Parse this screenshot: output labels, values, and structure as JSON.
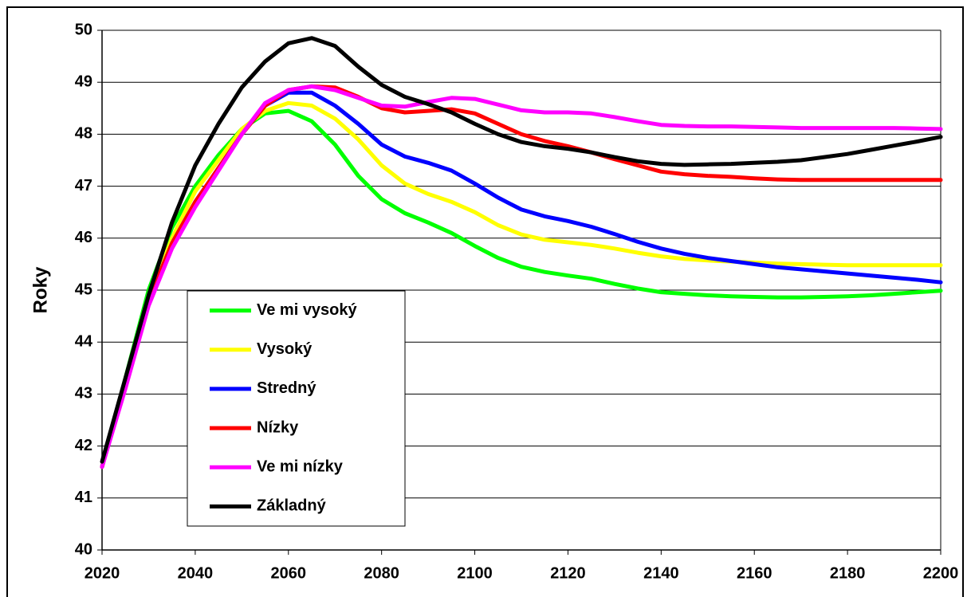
{
  "chart_data": {
    "type": "line",
    "y_label": "Roky",
    "x": [
      2020,
      2025,
      2030,
      2035,
      2040,
      2045,
      2050,
      2055,
      2060,
      2065,
      2070,
      2075,
      2080,
      2085,
      2090,
      2095,
      2100,
      2105,
      2110,
      2115,
      2120,
      2125,
      2130,
      2135,
      2140,
      2145,
      2150,
      2155,
      2160,
      2165,
      2170,
      2175,
      2180,
      2185,
      2190,
      2195,
      2200
    ],
    "xlim": [
      2020,
      2200
    ],
    "xticks": [
      2020,
      2040,
      2060,
      2080,
      2100,
      2120,
      2140,
      2160,
      2180,
      2200
    ],
    "ylim": [
      40,
      50
    ],
    "yticks": [
      40,
      41,
      42,
      43,
      44,
      45,
      46,
      47,
      48,
      49,
      50
    ],
    "grid": true,
    "legend": "lower left",
    "series": [
      {
        "name": "Ve mi vysoký",
        "color": "#00ff00",
        "values": [
          41.6,
          43.3,
          45.0,
          46.2,
          47.0,
          47.6,
          48.1,
          48.4,
          48.45,
          48.25,
          47.8,
          47.2,
          46.75,
          46.48,
          46.3,
          46.1,
          45.85,
          45.62,
          45.45,
          45.35,
          45.28,
          45.22,
          45.12,
          45.03,
          44.96,
          44.93,
          44.9,
          44.88,
          44.87,
          44.86,
          44.86,
          44.87,
          44.88,
          44.9,
          44.93,
          44.96,
          44.99
        ]
      },
      {
        "name": "Vysoký",
        "color": "#ffff00",
        "values": [
          41.6,
          43.2,
          44.8,
          46.0,
          46.9,
          47.5,
          48.1,
          48.45,
          48.6,
          48.55,
          48.3,
          47.9,
          47.4,
          47.05,
          46.85,
          46.7,
          46.5,
          46.25,
          46.07,
          45.97,
          45.92,
          45.87,
          45.8,
          45.72,
          45.65,
          45.6,
          45.57,
          45.55,
          45.53,
          45.51,
          45.5,
          45.49,
          45.48,
          45.48,
          45.48,
          45.48,
          45.48
        ]
      },
      {
        "name": "Stredný",
        "color": "#0000ff",
        "values": [
          41.6,
          43.2,
          44.8,
          45.9,
          46.7,
          47.35,
          48.0,
          48.55,
          48.8,
          48.8,
          48.55,
          48.2,
          47.8,
          47.57,
          47.45,
          47.3,
          47.05,
          46.78,
          46.55,
          46.42,
          46.33,
          46.22,
          46.08,
          45.93,
          45.8,
          45.7,
          45.62,
          45.56,
          45.5,
          45.44,
          45.4,
          45.36,
          45.32,
          45.28,
          45.24,
          45.2,
          45.15
        ]
      },
      {
        "name": "Nízky",
        "color": "#ff0000",
        "values": [
          41.6,
          43.2,
          44.8,
          45.9,
          46.7,
          47.35,
          48.0,
          48.55,
          48.85,
          48.92,
          48.9,
          48.72,
          48.5,
          48.42,
          48.45,
          48.48,
          48.4,
          48.2,
          48.0,
          47.87,
          47.77,
          47.65,
          47.52,
          47.4,
          47.28,
          47.23,
          47.2,
          47.18,
          47.15,
          47.13,
          47.12,
          47.12,
          47.12,
          47.12,
          47.12,
          47.12,
          47.12
        ]
      },
      {
        "name": "Ve mi nízky",
        "color": "#ff00ff",
        "values": [
          41.6,
          43.1,
          44.7,
          45.8,
          46.6,
          47.3,
          48.0,
          48.6,
          48.85,
          48.92,
          48.85,
          48.7,
          48.55,
          48.53,
          48.62,
          48.7,
          48.68,
          48.57,
          48.46,
          48.42,
          48.42,
          48.4,
          48.33,
          48.25,
          48.18,
          48.16,
          48.15,
          48.15,
          48.14,
          48.13,
          48.12,
          48.12,
          48.12,
          48.12,
          48.12,
          48.11,
          48.1
        ]
      },
      {
        "name": "Základný",
        "color": "#000000",
        "values": [
          41.7,
          43.3,
          44.9,
          46.3,
          47.4,
          48.2,
          48.9,
          49.4,
          49.75,
          49.85,
          49.7,
          49.3,
          48.95,
          48.72,
          48.58,
          48.42,
          48.2,
          48.0,
          47.85,
          47.77,
          47.72,
          47.65,
          47.56,
          47.48,
          47.43,
          47.41,
          47.42,
          47.43,
          47.45,
          47.47,
          47.5,
          47.56,
          47.62,
          47.7,
          47.78,
          47.86,
          47.95
        ]
      }
    ]
  }
}
